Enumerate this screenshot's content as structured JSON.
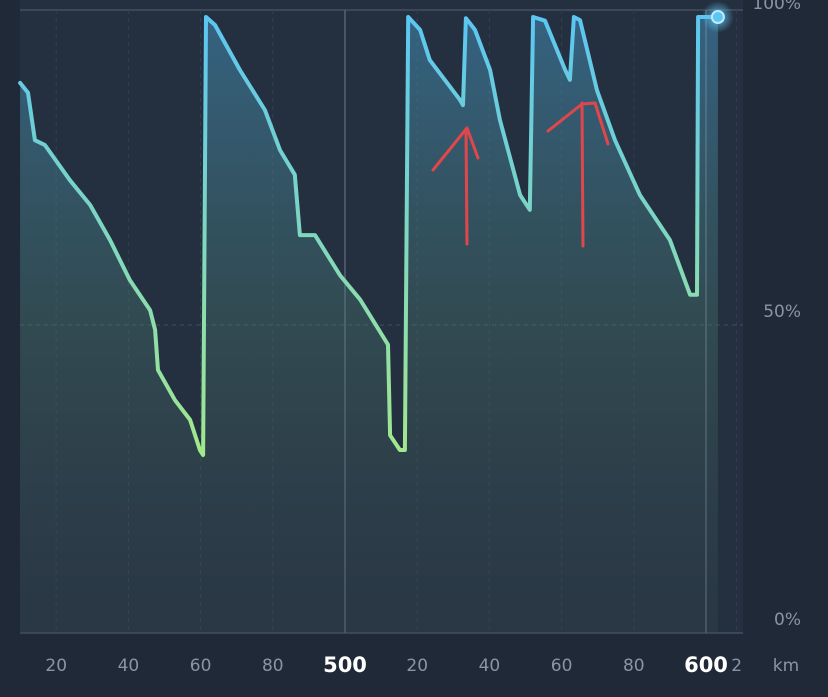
{
  "chart_data": {
    "type": "line",
    "x_label": "km",
    "color_top": "#5cc6f2",
    "color_bottom": "#a2e88c",
    "x": [
      410,
      412.2,
      414.1,
      416.9,
      423.8,
      429.4,
      434.9,
      440.4,
      446,
      447.4,
      448.2,
      452.9,
      457.1,
      459.8,
      460.7,
      461.5,
      464,
      470.9,
      477.8,
      482,
      486.1,
      487.5,
      491.7,
      498.6,
      504.2,
      511.9,
      512.5,
      515.2,
      516.6,
      517.5,
      520.8,
      523.5,
      531.9,
      532.7,
      533.5,
      536,
      540.2,
      542.9,
      548.5,
      551.2,
      552.1,
      555.4,
      561,
      562.3,
      563.4,
      565.1,
      569.8,
      574.8,
      581.7,
      590,
      595.6,
      597.5,
      597.8,
      603.3
    ],
    "values": [
      89.3,
      87.7,
      80,
      79.2,
      73.5,
      69.5,
      63.8,
      57.3,
      52.4,
      49.2,
      42.7,
      37.8,
      34.6,
      29.7,
      28.9,
      100,
      98.7,
      91.4,
      84.9,
      78.4,
      74.4,
      64.6,
      64.6,
      58.1,
      54.1,
      46.8,
      32.1,
      29.7,
      29.7,
      100,
      97.9,
      93,
      86.5,
      85.7,
      99.8,
      97.9,
      91.4,
      83.3,
      71.1,
      68.7,
      100,
      99.4,
      91.4,
      89.8,
      100,
      99.5,
      88.1,
      80,
      71.1,
      63.8,
      54.9,
      54.9,
      100,
      100
    ],
    "xlim": [
      410,
      620
    ],
    "xticks": [
      {
        "value": 420,
        "label": "20"
      },
      {
        "value": 440,
        "label": "40"
      },
      {
        "value": 460,
        "label": "60"
      },
      {
        "value": 480,
        "label": "80"
      },
      500,
      {
        "value": 520,
        "label": "20"
      },
      {
        "value": 540,
        "label": "40"
      },
      {
        "value": 560,
        "label": "60"
      },
      {
        "value": 580,
        "label": "80"
      },
      600,
      {
        "value": 608.5,
        "label": "2"
      }
    ],
    "ylim": [
      0,
      100
    ],
    "yticks": [
      {
        "value": 0,
        "label": "0%"
      },
      {
        "value": 50,
        "label": "50%"
      },
      {
        "value": 100,
        "label": "100%"
      }
    ],
    "grid": true
  }
}
